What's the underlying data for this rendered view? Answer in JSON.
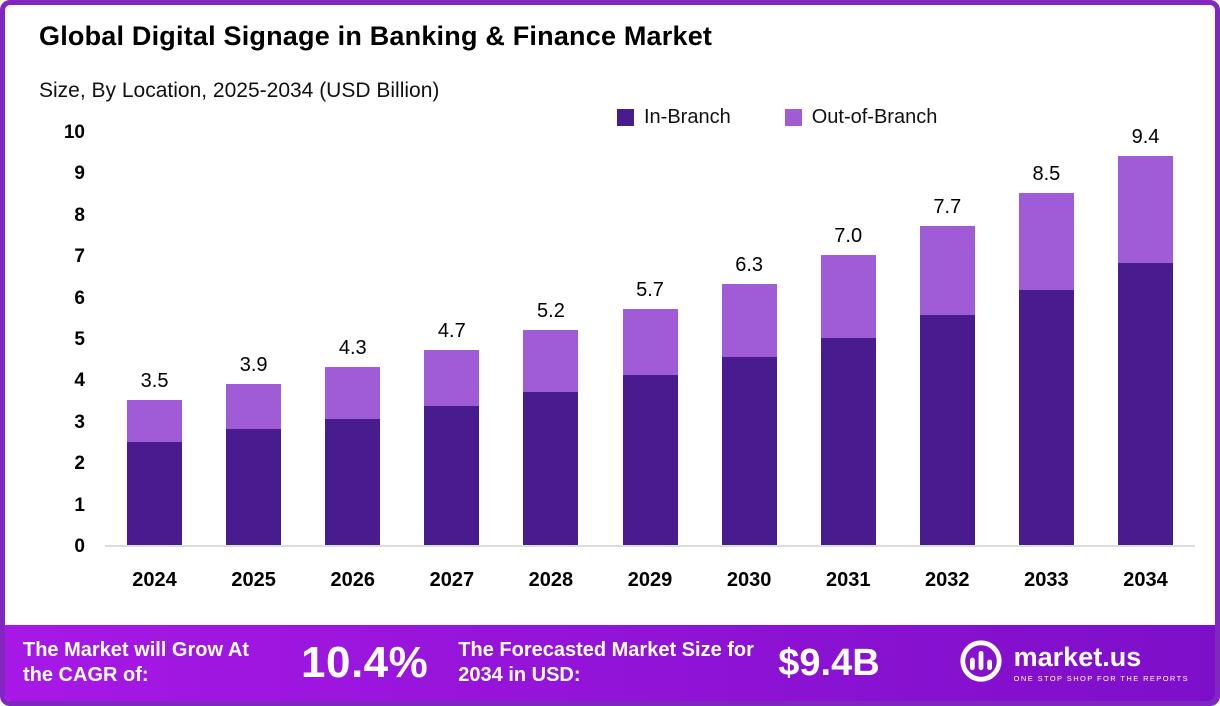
{
  "title": "Global Digital Signage in Banking & Finance Market",
  "subtitle": "Size, By Location, 2025-2034 (USD Billion)",
  "chart_data": {
    "type": "bar",
    "stacked": true,
    "title": "Global Digital Signage in Banking & Finance Market",
    "subtitle": "Size, By Location, 2025-2034 (USD Billion)",
    "categories": [
      "2024",
      "2025",
      "2026",
      "2027",
      "2028",
      "2029",
      "2030",
      "2031",
      "2032",
      "2033",
      "2034"
    ],
    "series": [
      {
        "name": "In-Branch",
        "color": "#481b8f",
        "values": [
          2.5,
          2.8,
          3.05,
          3.35,
          3.7,
          4.1,
          4.55,
          5.0,
          5.55,
          6.15,
          6.8
        ]
      },
      {
        "name": "Out-of-Branch",
        "color": "#a05cd7",
        "values": [
          1.0,
          1.1,
          1.25,
          1.35,
          1.5,
          1.6,
          1.75,
          2.0,
          2.15,
          2.35,
          2.6
        ]
      }
    ],
    "totals": [
      "3.5",
      "3.9",
      "4.3",
      "4.7",
      "5.2",
      "5.7",
      "6.3",
      "7.0",
      "7.7",
      "8.5",
      "9.4"
    ],
    "xlabel": "",
    "ylabel": "",
    "ylim": [
      0,
      10
    ],
    "yticks": [
      0,
      1,
      2,
      3,
      4,
      5,
      6,
      7,
      8,
      9,
      10
    ],
    "legend_position": "top",
    "grid": false
  },
  "footer": {
    "cagr_label": "The Market will Grow At the CAGR of:",
    "cagr_value": "10.4%",
    "forecast_label": "The Forecasted Market Size for 2034 in USD:",
    "forecast_value": "$9.4B",
    "brand": "market.us",
    "brand_tagline": "ONE STOP SHOP FOR THE REPORTS"
  },
  "colors": {
    "in_branch": "#481b8f",
    "out_of_branch": "#a05cd7",
    "banner_start": "#a718e6",
    "banner_end": "#7d0fc9",
    "page_border": "#8126c0",
    "baseline": "#dcdcdc"
  }
}
